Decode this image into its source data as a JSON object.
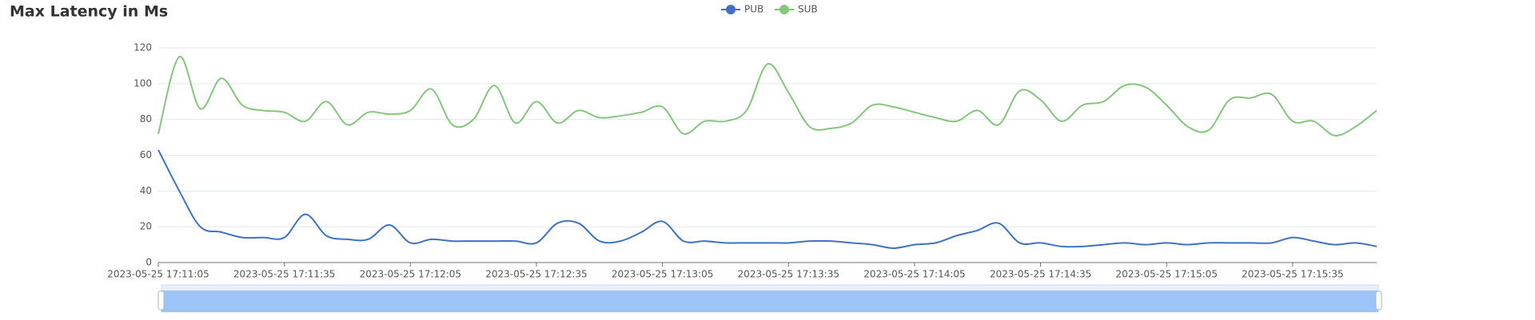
{
  "chart_data": {
    "type": "line",
    "title": "Max Latency in Ms",
    "x": [
      "2023-05-25 17:11:05",
      "2023-05-25 17:11:10",
      "2023-05-25 17:11:15",
      "2023-05-25 17:11:20",
      "2023-05-25 17:11:25",
      "2023-05-25 17:11:30",
      "2023-05-25 17:11:35",
      "2023-05-25 17:11:40",
      "2023-05-25 17:11:45",
      "2023-05-25 17:11:50",
      "2023-05-25 17:11:55",
      "2023-05-25 17:12:00",
      "2023-05-25 17:12:05",
      "2023-05-25 17:12:10",
      "2023-05-25 17:12:15",
      "2023-05-25 17:12:20",
      "2023-05-25 17:12:25",
      "2023-05-25 17:12:30",
      "2023-05-25 17:12:35",
      "2023-05-25 17:12:40",
      "2023-05-25 17:12:45",
      "2023-05-25 17:12:50",
      "2023-05-25 17:12:55",
      "2023-05-25 17:13:00",
      "2023-05-25 17:13:05",
      "2023-05-25 17:13:10",
      "2023-05-25 17:13:15",
      "2023-05-25 17:13:20",
      "2023-05-25 17:13:25",
      "2023-05-25 17:13:30",
      "2023-05-25 17:13:35",
      "2023-05-25 17:13:40",
      "2023-05-25 17:13:45",
      "2023-05-25 17:13:50",
      "2023-05-25 17:13:55",
      "2023-05-25 17:14:00",
      "2023-05-25 17:14:05",
      "2023-05-25 17:14:10",
      "2023-05-25 17:14:15",
      "2023-05-25 17:14:20",
      "2023-05-25 17:14:25",
      "2023-05-25 17:14:30",
      "2023-05-25 17:14:35",
      "2023-05-25 17:14:40",
      "2023-05-25 17:14:45",
      "2023-05-25 17:14:50",
      "2023-05-25 17:14:55",
      "2023-05-25 17:15:00",
      "2023-05-25 17:15:05",
      "2023-05-25 17:15:10",
      "2023-05-25 17:15:15",
      "2023-05-25 17:15:20",
      "2023-05-25 17:15:25",
      "2023-05-25 17:15:30",
      "2023-05-25 17:15:35",
      "2023-05-25 17:15:40",
      "2023-05-25 17:15:45",
      "2023-05-25 17:15:50",
      "2023-05-25 17:15:55"
    ],
    "series": [
      {
        "name": "PUB",
        "color": "#3d72c5",
        "values": [
          63,
          40,
          20,
          17,
          14,
          14,
          14,
          27,
          15,
          13,
          13,
          21,
          11,
          13,
          12,
          12,
          12,
          12,
          11,
          22,
          22,
          12,
          12,
          17,
          23,
          12,
          12,
          11,
          11,
          11,
          11,
          12,
          12,
          11,
          10,
          8,
          10,
          11,
          15,
          18,
          22,
          11,
          11,
          9,
          9,
          10,
          11,
          10,
          11,
          10,
          11,
          11,
          11,
          11,
          14,
          12,
          10,
          11,
          9
        ]
      },
      {
        "name": "SUB",
        "color": "#82c77a",
        "values": [
          72,
          115,
          86,
          103,
          88,
          85,
          84,
          79,
          90,
          77,
          84,
          83,
          85,
          97,
          77,
          80,
          99,
          78,
          90,
          78,
          85,
          81,
          82,
          84,
          87,
          72,
          79,
          79,
          85,
          111,
          95,
          76,
          75,
          78,
          88,
          87,
          84,
          81,
          79,
          85,
          77,
          96,
          91,
          79,
          88,
          90,
          99,
          98,
          88,
          76,
          74,
          91,
          92,
          94,
          79,
          79,
          71,
          76,
          85
        ]
      }
    ],
    "xlim": [
      "2023-05-25 17:11:05",
      "2023-05-25 17:15:55"
    ],
    "xticks": [
      "2023-05-25 17:11:05",
      "2023-05-25 17:11:35",
      "2023-05-25 17:12:05",
      "2023-05-25 17:12:35",
      "2023-05-25 17:13:05",
      "2023-05-25 17:13:35",
      "2023-05-25 17:14:05",
      "2023-05-25 17:14:35",
      "2023-05-25 17:15:05",
      "2023-05-25 17:15:35"
    ],
    "ylim": [
      0,
      120
    ],
    "yticks": [
      0,
      20,
      40,
      60,
      80,
      100,
      120
    ],
    "grid": true,
    "legend": "top"
  }
}
